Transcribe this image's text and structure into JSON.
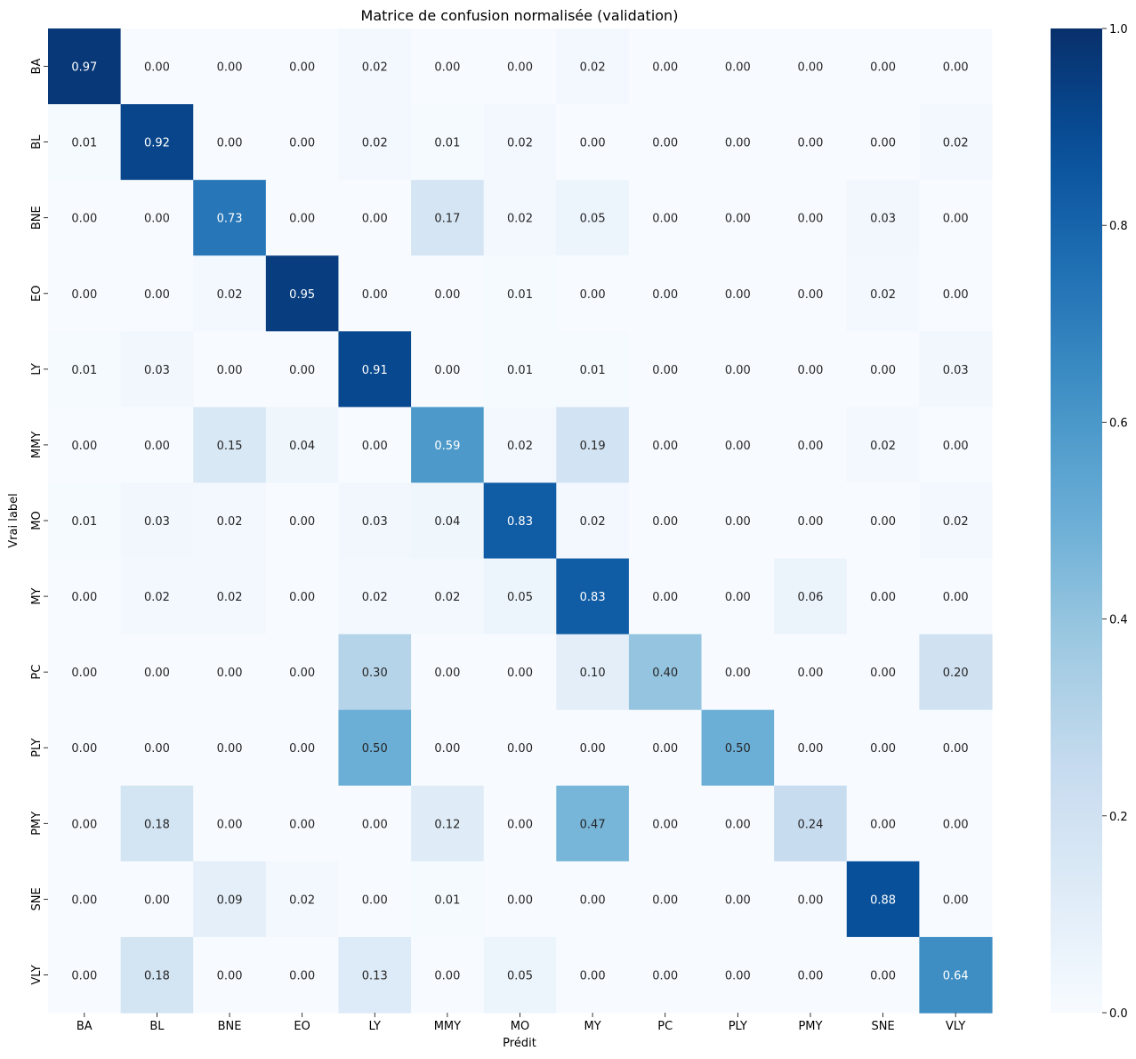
{
  "chart_data": {
    "type": "heatmap",
    "title": "Matrice de confusion normalisée (validation)",
    "xlabel": "Prédit",
    "ylabel": "Vrai label",
    "x_categories": [
      "BA",
      "BL",
      "BNE",
      "EO",
      "LY",
      "MMY",
      "MO",
      "MY",
      "PC",
      "PLY",
      "PMY",
      "SNE",
      "VLY"
    ],
    "y_categories": [
      "BA",
      "BL",
      "BNE",
      "EO",
      "LY",
      "MMY",
      "MO",
      "MY",
      "PC",
      "PLY",
      "PMY",
      "SNE",
      "VLY"
    ],
    "values": [
      [
        0.97,
        0.0,
        0.0,
        0.0,
        0.02,
        0.0,
        0.0,
        0.02,
        0.0,
        0.0,
        0.0,
        0.0,
        0.0
      ],
      [
        0.01,
        0.92,
        0.0,
        0.0,
        0.02,
        0.01,
        0.02,
        0.0,
        0.0,
        0.0,
        0.0,
        0.0,
        0.02
      ],
      [
        0.0,
        0.0,
        0.73,
        0.0,
        0.0,
        0.17,
        0.02,
        0.05,
        0.0,
        0.0,
        0.0,
        0.03,
        0.0
      ],
      [
        0.0,
        0.0,
        0.02,
        0.95,
        0.0,
        0.0,
        0.01,
        0.0,
        0.0,
        0.0,
        0.0,
        0.02,
        0.0
      ],
      [
        0.01,
        0.03,
        0.0,
        0.0,
        0.91,
        0.0,
        0.01,
        0.01,
        0.0,
        0.0,
        0.0,
        0.0,
        0.03
      ],
      [
        0.0,
        0.0,
        0.15,
        0.04,
        0.0,
        0.59,
        0.02,
        0.19,
        0.0,
        0.0,
        0.0,
        0.02,
        0.0
      ],
      [
        0.01,
        0.03,
        0.02,
        0.0,
        0.03,
        0.04,
        0.83,
        0.02,
        0.0,
        0.0,
        0.0,
        0.0,
        0.02
      ],
      [
        0.0,
        0.02,
        0.02,
        0.0,
        0.02,
        0.02,
        0.05,
        0.83,
        0.0,
        0.0,
        0.06,
        0.0,
        0.0
      ],
      [
        0.0,
        0.0,
        0.0,
        0.0,
        0.3,
        0.0,
        0.0,
        0.1,
        0.4,
        0.0,
        0.0,
        0.0,
        0.2
      ],
      [
        0.0,
        0.0,
        0.0,
        0.0,
        0.5,
        0.0,
        0.0,
        0.0,
        0.0,
        0.5,
        0.0,
        0.0,
        0.0
      ],
      [
        0.0,
        0.18,
        0.0,
        0.0,
        0.0,
        0.12,
        0.0,
        0.47,
        0.0,
        0.0,
        0.24,
        0.0,
        0.0
      ],
      [
        0.0,
        0.0,
        0.09,
        0.02,
        0.0,
        0.01,
        0.0,
        0.0,
        0.0,
        0.0,
        0.0,
        0.88,
        0.0
      ],
      [
        0.0,
        0.18,
        0.0,
        0.0,
        0.13,
        0.0,
        0.05,
        0.0,
        0.0,
        0.0,
        0.0,
        0.0,
        0.64
      ]
    ],
    "vmin": 0.0,
    "vmax": 1.0,
    "colormap": "Blues",
    "colorbar_ticks": [
      0.0,
      0.2,
      0.4,
      0.6,
      0.8,
      1.0
    ],
    "colorbar_tick_labels": [
      "0.0",
      "0.2",
      "0.4",
      "0.6",
      "0.8",
      "1.0"
    ],
    "value_format": "0.00",
    "grid": false,
    "colors": {
      "low": "#f7fbff",
      "high": "#08306b",
      "text_dark": "#262626",
      "text_light": "#ffffff"
    }
  }
}
